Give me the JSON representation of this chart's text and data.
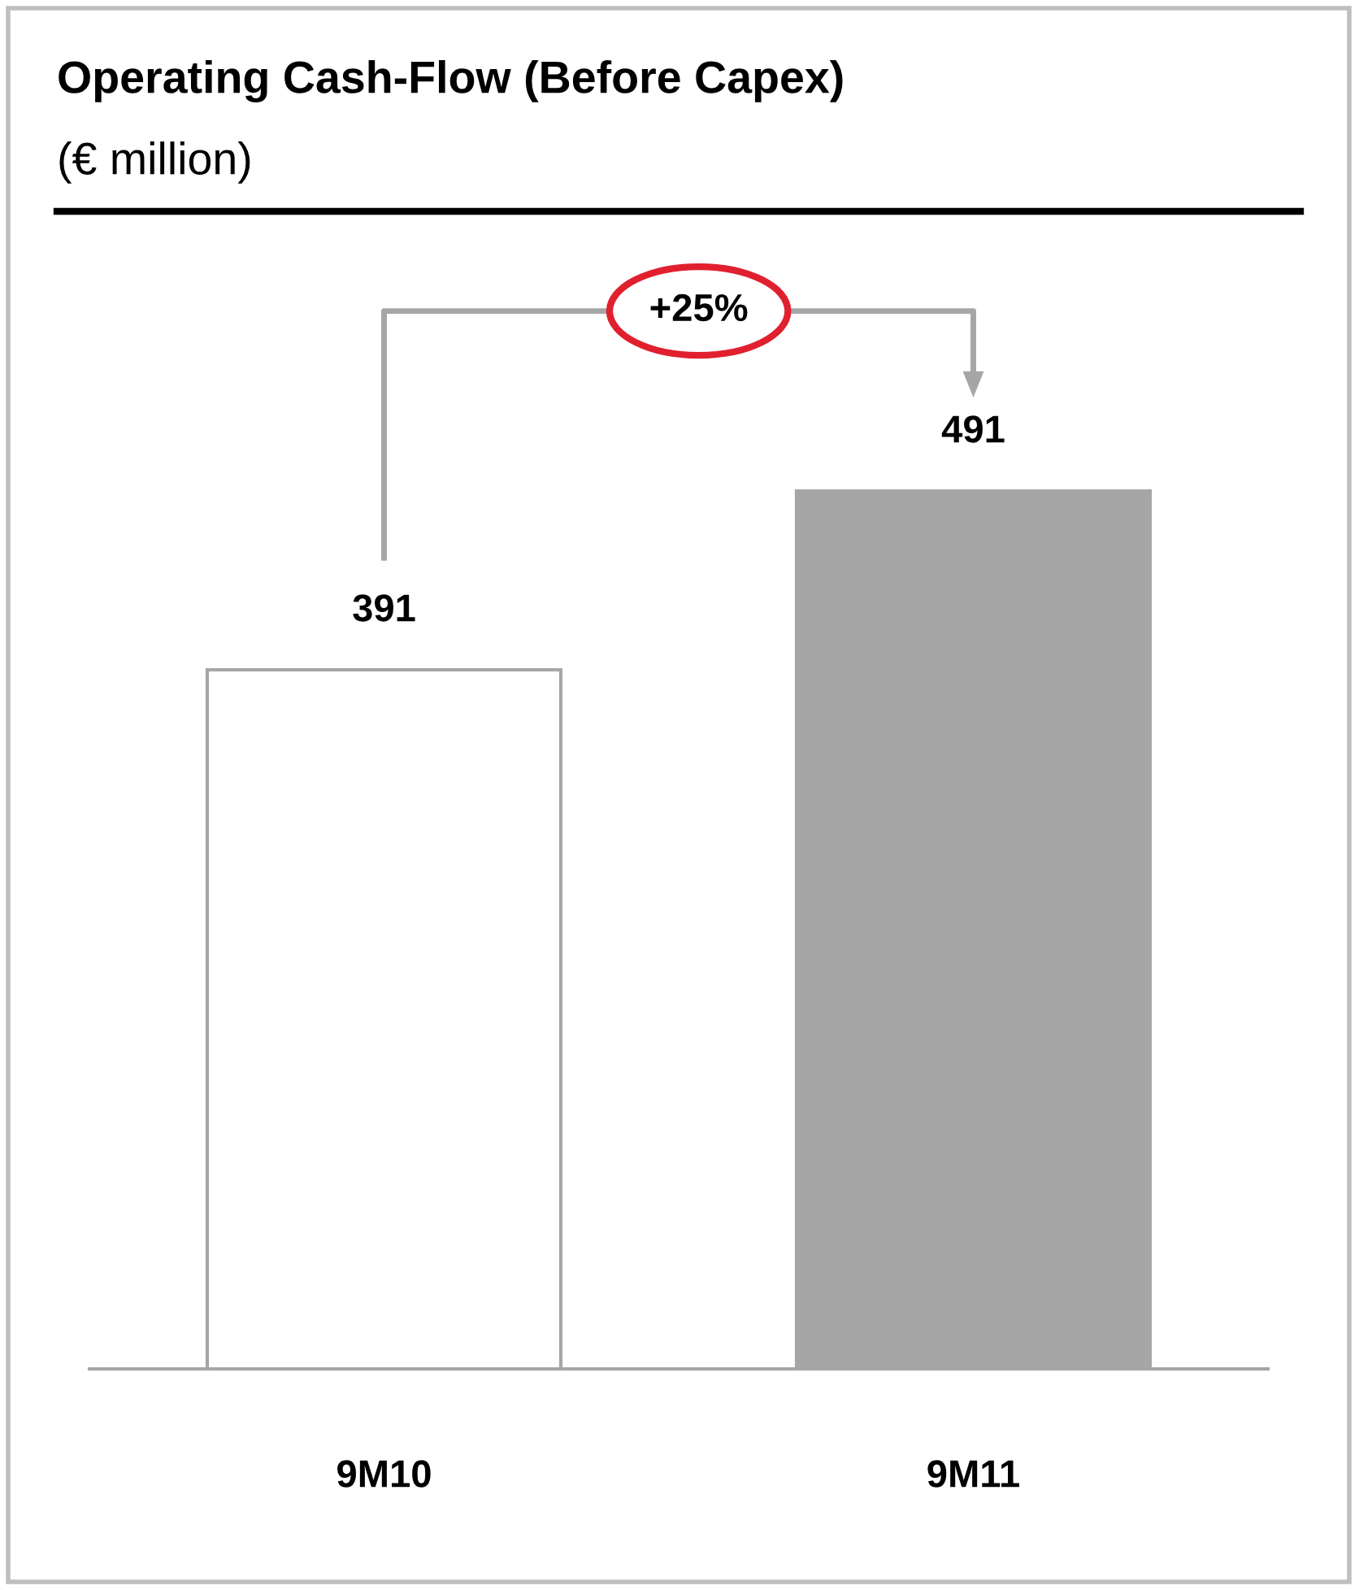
{
  "chart_data": {
    "type": "bar",
    "title": "Operating Cash-Flow (Before Capex)",
    "subtitle": "(€ million)",
    "categories": [
      "9M10",
      "9M11"
    ],
    "values": [
      391,
      491
    ],
    "colors": [
      "#ffffff",
      "#a6a6a6"
    ],
    "data_labels": true,
    "annotations": [
      "+25%"
    ],
    "grid": false,
    "legend": false
  }
}
